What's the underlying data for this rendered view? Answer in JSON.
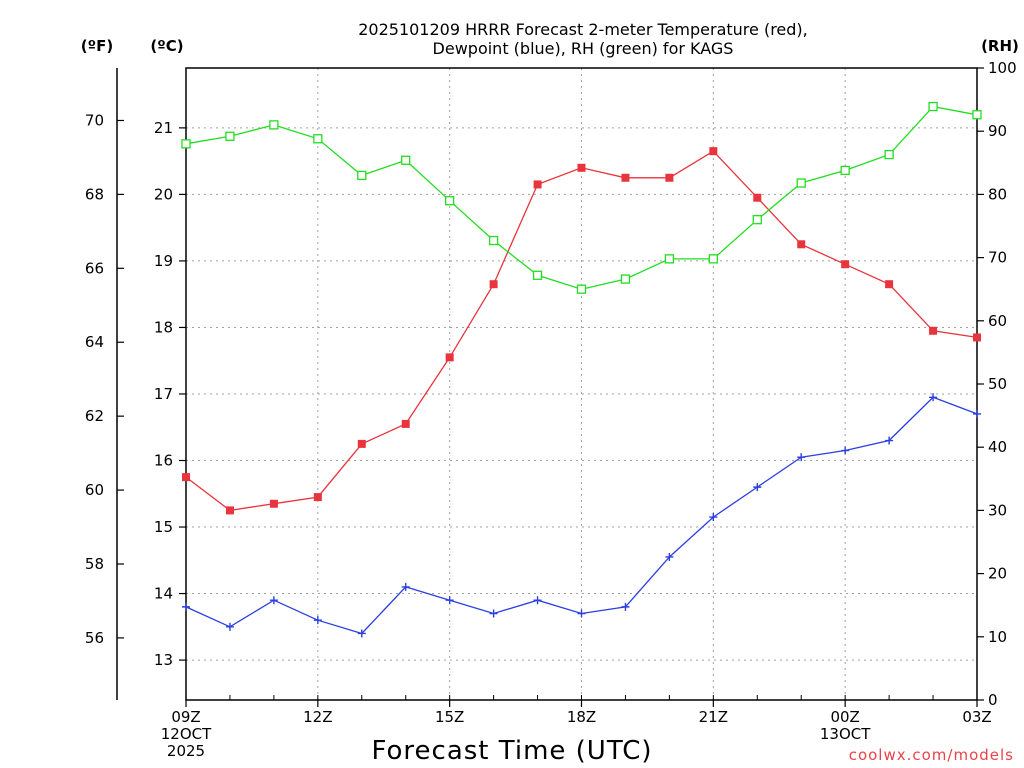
{
  "chart_data": {
    "type": "line",
    "title_line1": "2025101209 HRRR Forecast 2-meter Temperature (red),",
    "title_line2": "Dewpoint (blue), RH (green) for KAGS",
    "xlabel": "Forecast Time (UTC)",
    "credit": "coolwx.com/models",
    "units": {
      "fahrenheit": "(ºF)",
      "celsius": "(ºC)",
      "rh": "(RH)"
    },
    "x_hours": [
      0,
      1,
      2,
      3,
      4,
      5,
      6,
      7,
      8,
      9,
      10,
      11,
      12,
      13,
      14,
      15,
      16,
      17,
      18
    ],
    "x_ticks": [
      {
        "hour": 0,
        "lines": [
          "09Z",
          "12OCT",
          "2025"
        ]
      },
      {
        "hour": 3,
        "lines": [
          "12Z"
        ]
      },
      {
        "hour": 6,
        "lines": [
          "15Z"
        ]
      },
      {
        "hour": 9,
        "lines": [
          "18Z"
        ]
      },
      {
        "hour": 12,
        "lines": [
          "21Z"
        ]
      },
      {
        "hour": 15,
        "lines": [
          "00Z",
          "13OCT"
        ]
      },
      {
        "hour": 18,
        "lines": [
          "03Z"
        ]
      }
    ],
    "celsius_range": [
      12.4,
      21.9
    ],
    "celsius_ticks": [
      "13",
      "14",
      "15",
      "16",
      "17",
      "18",
      "19",
      "20",
      "21"
    ],
    "fahrenheit_ticks": [
      "56",
      "58",
      "60",
      "62",
      "64",
      "66",
      "68",
      "70"
    ],
    "rh_range": [
      0,
      100
    ],
    "rh_ticks": [
      "0",
      "10",
      "20",
      "30",
      "40",
      "50",
      "60",
      "70",
      "80",
      "90",
      "100"
    ],
    "grid": true,
    "series": [
      {
        "name": "Temperature",
        "color": "#e8343c",
        "marker": "filled-square",
        "values_c": [
          15.75,
          15.25,
          15.35,
          15.45,
          16.25,
          16.55,
          17.55,
          18.65,
          20.15,
          20.4,
          20.25,
          20.25,
          20.65,
          19.95,
          19.25,
          18.95,
          18.65,
          17.95,
          17.85
        ]
      },
      {
        "name": "Dewpoint",
        "color": "#2a3fe0",
        "marker": "plus",
        "values_c": [
          13.8,
          13.5,
          13.9,
          13.6,
          13.4,
          14.1,
          13.9,
          13.7,
          13.9,
          13.7,
          13.8,
          14.55,
          15.15,
          15.6,
          16.05,
          16.15,
          16.3,
          16.95,
          16.7
        ]
      },
      {
        "name": "RH",
        "color": "#22dd22",
        "marker": "open-square",
        "values_rh": [
          88.0,
          89.2,
          91.0,
          88.8,
          83.0,
          85.4,
          79.0,
          72.7,
          67.2,
          65.0,
          66.6,
          69.8,
          69.8,
          76.0,
          81.8,
          83.8,
          86.3,
          93.9,
          92.6
        ]
      }
    ]
  }
}
